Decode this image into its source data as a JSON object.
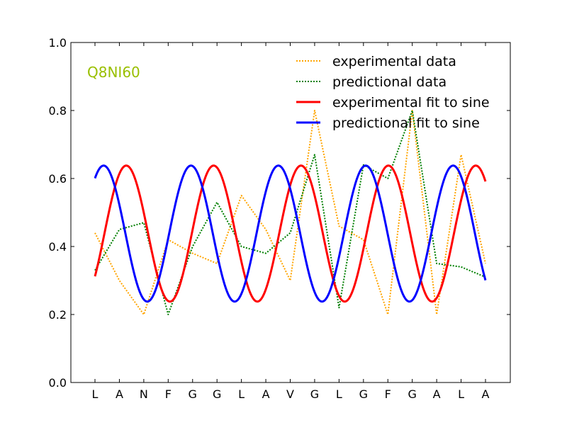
{
  "chart_data": {
    "type": "line",
    "annotation": "Q8NI60",
    "categories": [
      "L",
      "A",
      "N",
      "F",
      "G",
      "G",
      "L",
      "A",
      "V",
      "G",
      "L",
      "G",
      "F",
      "G",
      "A",
      "L",
      "A"
    ],
    "ylim": [
      0,
      1.0
    ],
    "yticks": [
      "0.0",
      "0.2",
      "0.4",
      "0.6",
      "0.8",
      "1.0"
    ],
    "grid": false,
    "legend_position": "top-right",
    "series": [
      {
        "name": "experimental data",
        "style": "dotted",
        "color": "#ffa500",
        "values": [
          0.44,
          0.3,
          0.2,
          0.42,
          0.38,
          0.35,
          0.55,
          0.45,
          0.3,
          0.8,
          0.46,
          0.42,
          0.2,
          0.8,
          0.2,
          0.67,
          0.35
        ]
      },
      {
        "name": "predictional data",
        "style": "dotted",
        "color": "#007f00",
        "values": [
          0.33,
          0.45,
          0.47,
          0.2,
          0.4,
          0.53,
          0.4,
          0.38,
          0.44,
          0.67,
          0.22,
          0.64,
          0.6,
          0.8,
          0.35,
          0.34,
          0.31
        ]
      },
      {
        "name": "experimental fit to sine",
        "style": "solid",
        "color": "#ff0000",
        "fit": {
          "offset": 0.438,
          "amplitude": 0.2,
          "period": 3.58,
          "phase": -0.68
        }
      },
      {
        "name": "predictional fit to sine",
        "style": "solid",
        "color": "#0000ff",
        "fit": {
          "offset": 0.438,
          "amplitude": 0.2,
          "period": 3.58,
          "phase": 0.95
        }
      }
    ],
    "annotation_color": "#99bf00"
  }
}
